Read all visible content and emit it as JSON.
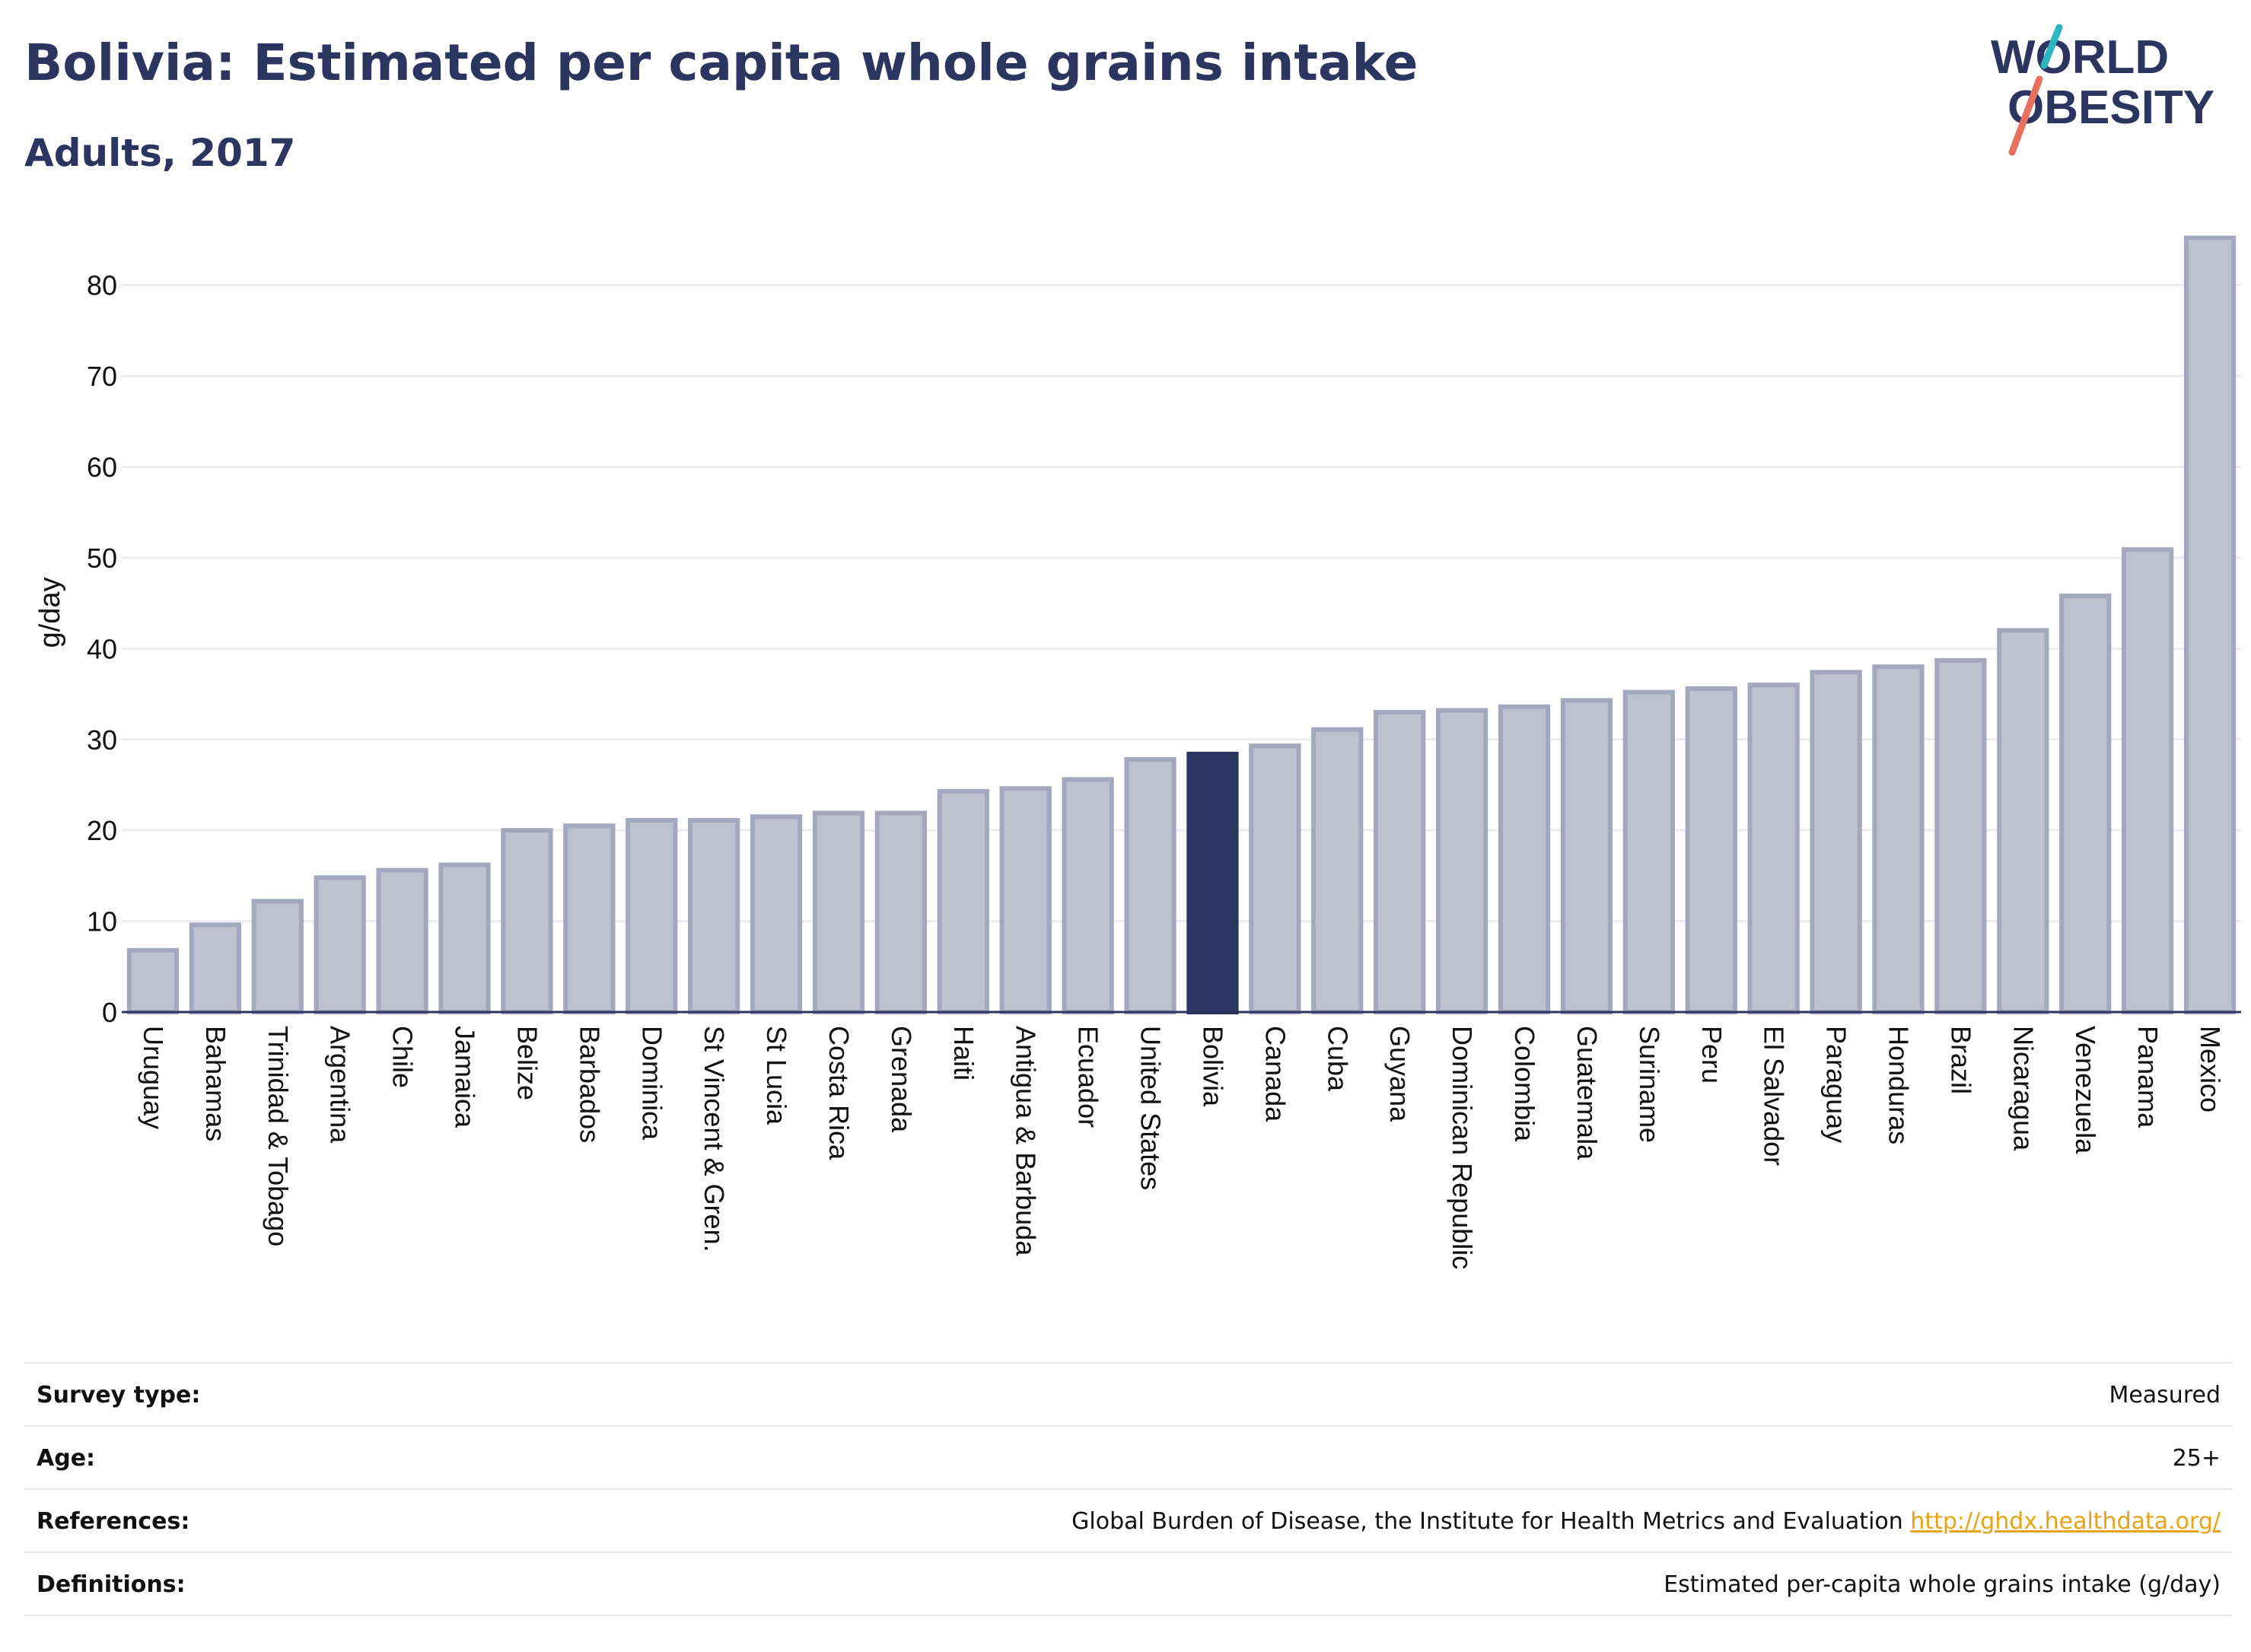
{
  "header": {
    "title": "Bolivia: Estimated per capita whole grains intake",
    "subtitle": "Adults, 2017"
  },
  "logo": {
    "line1": "WORLD",
    "line2": "OBESITY"
  },
  "colors": {
    "highlight": "#2b3561",
    "bar": "#bec1cf",
    "bar_border": "#a3a8be",
    "text": "#2c3560",
    "link": "#e8a317",
    "logo_teal": "#2bb6c1",
    "logo_coral": "#e8705f"
  },
  "chart_data": {
    "type": "bar",
    "ylabel": "g/day",
    "xlabel": "",
    "ylim": [
      0,
      85
    ],
    "yticks": [
      0,
      10,
      20,
      30,
      40,
      50,
      60,
      70,
      80
    ],
    "grid": true,
    "highlight": "Bolivia",
    "categories": [
      "Uruguay",
      "Bahamas",
      "Trinidad & Tobago",
      "Argentina",
      "Chile",
      "Jamaica",
      "Belize",
      "Barbados",
      "Dominica",
      "St Vincent & Gren.",
      "St Lucia",
      "Costa Rica",
      "Grenada",
      "Haiti",
      "Antigua & Barbuda",
      "Ecuador",
      "United States",
      "Bolivia",
      "Canada",
      "Cuba",
      "Guyana",
      "Dominican Republic",
      "Colombia",
      "Guatemala",
      "Suriname",
      "Peru",
      "El Salvador",
      "Paraguay",
      "Honduras",
      "Brazil",
      "Nicaragua",
      "Venezuela",
      "Panama",
      "Mexico"
    ],
    "values": [
      6.8,
      9.6,
      12.2,
      14.8,
      15.6,
      16.2,
      20.0,
      20.5,
      21.1,
      21.1,
      21.5,
      21.9,
      21.9,
      24.3,
      24.6,
      25.6,
      27.8,
      28.4,
      29.3,
      31.1,
      33.0,
      33.2,
      33.6,
      34.3,
      35.2,
      35.6,
      36.0,
      37.4,
      38.0,
      38.7,
      42.0,
      45.8,
      50.9,
      85.2
    ]
  },
  "meta": {
    "survey_type_label": "Survey type:",
    "survey_type_value": "Measured",
    "age_label": "Age:",
    "age_value": "25+",
    "references_label": "References:",
    "references_text": "Global Burden of Disease, the Institute for Health Metrics and Evaluation ",
    "references_link": "http://ghdx.healthdata.org/",
    "definitions_label": "Definitions:",
    "definitions_value": "Estimated per-capita whole grains intake (g/day)"
  }
}
